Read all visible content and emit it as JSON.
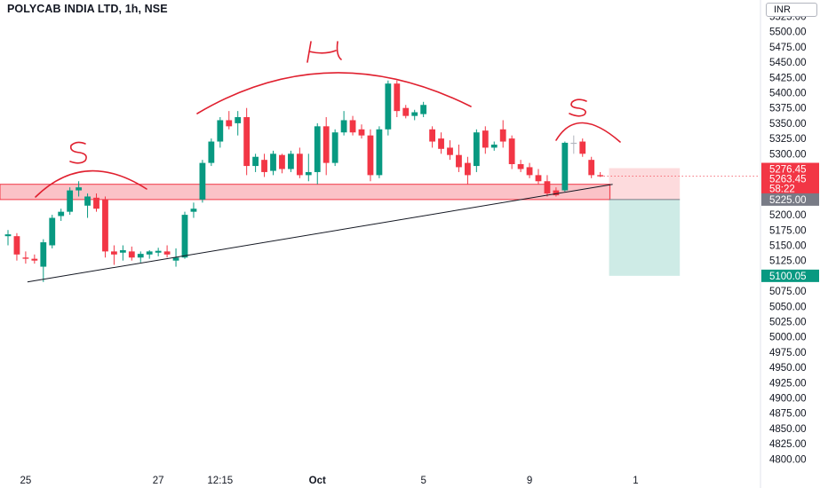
{
  "header": {
    "title": "POLYCAB INDIA LTD, 1h, NSE",
    "currency": "INR"
  },
  "chart_data": {
    "type": "candlestick",
    "y_axis": {
      "min": 4800,
      "max": 5525,
      "step": 25,
      "tick_labels": [
        "5525.00",
        "5500.00",
        "5475.00",
        "5450.00",
        "5425.00",
        "5400.00",
        "5375.00",
        "5350.00",
        "5325.00",
        "5300.00",
        "5275.00",
        "5250.00",
        "5225.00",
        "5200.00",
        "5175.00",
        "5150.00",
        "5125.00",
        "5100.00",
        "5075.00",
        "5050.00",
        "5025.00",
        "5000.00",
        "4975.00",
        "4950.00",
        "4925.00",
        "4900.00",
        "4875.00",
        "4850.00",
        "4825.00",
        "4800.00"
      ]
    },
    "x_axis": {
      "tick_labels": [
        {
          "label": "25",
          "bar": 2
        },
        {
          "label": "27",
          "bar": 17
        },
        {
          "label": "12:15",
          "bar": 24
        },
        {
          "label": "Oct",
          "bar": 35
        },
        {
          "label": "5",
          "bar": 47
        },
        {
          "label": "9",
          "bar": 59
        },
        {
          "label": "1",
          "bar": 71
        }
      ]
    },
    "candles": [
      {
        "o": 5165,
        "h": 5175,
        "l": 5150,
        "c": 5168
      },
      {
        "o": 5165,
        "h": 5170,
        "l": 5125,
        "c": 5135
      },
      {
        "o": 5130,
        "h": 5140,
        "l": 5120,
        "c": 5128
      },
      {
        "o": 5128,
        "h": 5135,
        "l": 5120,
        "c": 5125
      },
      {
        "o": 5115,
        "h": 5160,
        "l": 5090,
        "c": 5155
      },
      {
        "o": 5150,
        "h": 5200,
        "l": 5145,
        "c": 5195
      },
      {
        "o": 5198,
        "h": 5210,
        "l": 5190,
        "c": 5205
      },
      {
        "o": 5205,
        "h": 5245,
        "l": 5200,
        "c": 5240
      },
      {
        "o": 5240,
        "h": 5255,
        "l": 5230,
        "c": 5245
      },
      {
        "o": 5215,
        "h": 5235,
        "l": 5195,
        "c": 5230
      },
      {
        "o": 5228,
        "h": 5235,
        "l": 5205,
        "c": 5210
      },
      {
        "o": 5225,
        "h": 5230,
        "l": 5130,
        "c": 5140
      },
      {
        "o": 5140,
        "h": 5150,
        "l": 5118,
        "c": 5135
      },
      {
        "o": 5138,
        "h": 5150,
        "l": 5125,
        "c": 5142
      },
      {
        "o": 5140,
        "h": 5148,
        "l": 5125,
        "c": 5130
      },
      {
        "o": 5130,
        "h": 5140,
        "l": 5122,
        "c": 5136
      },
      {
        "o": 5135,
        "h": 5142,
        "l": 5128,
        "c": 5140
      },
      {
        "o": 5138,
        "h": 5146,
        "l": 5132,
        "c": 5141
      },
      {
        "o": 5140,
        "h": 5150,
        "l": 5130,
        "c": 5135
      },
      {
        "o": 5125,
        "h": 5145,
        "l": 5115,
        "c": 5130
      },
      {
        "o": 5130,
        "h": 5205,
        "l": 5128,
        "c": 5200
      },
      {
        "o": 5205,
        "h": 5220,
        "l": 5195,
        "c": 5210
      },
      {
        "o": 5225,
        "h": 5290,
        "l": 5220,
        "c": 5285
      },
      {
        "o": 5285,
        "h": 5325,
        "l": 5280,
        "c": 5320
      },
      {
        "o": 5320,
        "h": 5360,
        "l": 5310,
        "c": 5355
      },
      {
        "o": 5355,
        "h": 5370,
        "l": 5340,
        "c": 5345
      },
      {
        "o": 5350,
        "h": 5370,
        "l": 5330,
        "c": 5360
      },
      {
        "o": 5360,
        "h": 5375,
        "l": 5265,
        "c": 5280
      },
      {
        "o": 5280,
        "h": 5300,
        "l": 5270,
        "c": 5295
      },
      {
        "o": 5290,
        "h": 5300,
        "l": 5262,
        "c": 5270
      },
      {
        "o": 5272,
        "h": 5305,
        "l": 5265,
        "c": 5300
      },
      {
        "o": 5298,
        "h": 5300,
        "l": 5268,
        "c": 5275
      },
      {
        "o": 5275,
        "h": 5305,
        "l": 5270,
        "c": 5300
      },
      {
        "o": 5300,
        "h": 5310,
        "l": 5260,
        "c": 5265
      },
      {
        "o": 5265,
        "h": 5300,
        "l": 5255,
        "c": 5270
      },
      {
        "o": 5270,
        "h": 5350,
        "l": 5250,
        "c": 5345
      },
      {
        "o": 5345,
        "h": 5360,
        "l": 5265,
        "c": 5285
      },
      {
        "o": 5285,
        "h": 5340,
        "l": 5280,
        "c": 5335
      },
      {
        "o": 5335,
        "h": 5370,
        "l": 5330,
        "c": 5355
      },
      {
        "o": 5355,
        "h": 5362,
        "l": 5330,
        "c": 5335
      },
      {
        "o": 5340,
        "h": 5348,
        "l": 5325,
        "c": 5330
      },
      {
        "o": 5330,
        "h": 5340,
        "l": 5255,
        "c": 5265
      },
      {
        "o": 5265,
        "h": 5345,
        "l": 5260,
        "c": 5340
      },
      {
        "o": 5340,
        "h": 5420,
        "l": 5330,
        "c": 5415
      },
      {
        "o": 5415,
        "h": 5420,
        "l": 5360,
        "c": 5370
      },
      {
        "o": 5375,
        "h": 5380,
        "l": 5358,
        "c": 5362
      },
      {
        "o": 5362,
        "h": 5372,
        "l": 5355,
        "c": 5368
      },
      {
        "o": 5365,
        "h": 5385,
        "l": 5360,
        "c": 5380
      },
      {
        "o": 5340,
        "h": 5345,
        "l": 5310,
        "c": 5320
      },
      {
        "o": 5325,
        "h": 5335,
        "l": 5300,
        "c": 5308
      },
      {
        "o": 5310,
        "h": 5322,
        "l": 5290,
        "c": 5298
      },
      {
        "o": 5298,
        "h": 5315,
        "l": 5270,
        "c": 5278
      },
      {
        "o": 5285,
        "h": 5295,
        "l": 5250,
        "c": 5265
      },
      {
        "o": 5280,
        "h": 5340,
        "l": 5270,
        "c": 5335
      },
      {
        "o": 5338,
        "h": 5345,
        "l": 5300,
        "c": 5310
      },
      {
        "o": 5310,
        "h": 5320,
        "l": 5305,
        "c": 5315
      },
      {
        "o": 5340,
        "h": 5355,
        "l": 5310,
        "c": 5320
      },
      {
        "o": 5325,
        "h": 5330,
        "l": 5275,
        "c": 5283
      },
      {
        "o": 5283,
        "h": 5290,
        "l": 5270,
        "c": 5275
      },
      {
        "o": 5278,
        "h": 5285,
        "l": 5260,
        "c": 5265
      },
      {
        "o": 5265,
        "h": 5275,
        "l": 5250,
        "c": 5255
      },
      {
        "o": 5255,
        "h": 5265,
        "l": 5230,
        "c": 5235
      },
      {
        "o": 5240,
        "h": 5245,
        "l": 5230,
        "c": 5232
      },
      {
        "o": 5240,
        "h": 5320,
        "l": 5238,
        "c": 5318
      },
      {
        "o": 5318,
        "h": 5330,
        "l": 5300,
        "c": 5318
      },
      {
        "o": 5320,
        "h": 5325,
        "l": 5295,
        "c": 5300
      },
      {
        "o": 5290,
        "h": 5295,
        "l": 5260,
        "c": 5265
      },
      {
        "o": 5265,
        "h": 5270,
        "l": 5262,
        "c": 5263
      }
    ],
    "rectangle_zone": {
      "top": 5250,
      "bottom": 5225,
      "color": "#f23645"
    },
    "trendline": {
      "from": {
        "bar": 2,
        "price": 5090
      },
      "to": {
        "bar": 68,
        "price": 5250
      },
      "color": "#131722"
    },
    "current_price_line": {
      "price": 5263.45,
      "color": "#f23645"
    },
    "position": {
      "entry": 5225.0,
      "stop": 5276.45,
      "target": 5100.05,
      "entry_label": "5225.00",
      "stop_label": "5276.45",
      "target_label": "5100.05",
      "current_label": "5263.45",
      "countdown_label": "58:22",
      "start_bar": 68,
      "end_bar": 76
    },
    "annotations": [
      {
        "text": "S",
        "bar": 8,
        "price": 5300
      },
      {
        "text": "H",
        "bar": 36,
        "price": 5465
      },
      {
        "text": "S",
        "bar": 65,
        "price": 5372
      }
    ],
    "colors": {
      "up": "#089981",
      "down": "#f23645",
      "neutral": "#b2b5be",
      "grid": "#f0f3fa",
      "text": "#131722"
    }
  }
}
